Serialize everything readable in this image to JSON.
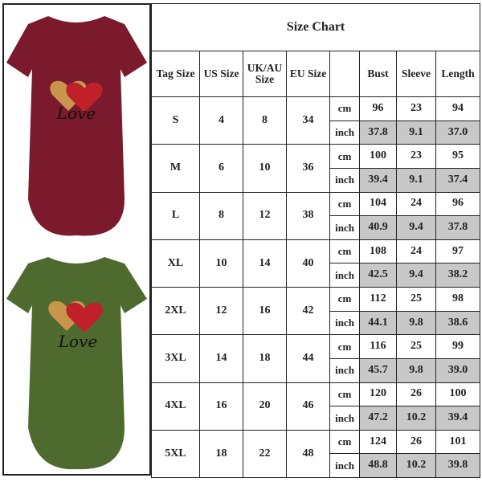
{
  "title": "Size Chart",
  "headers": [
    "Tag Size",
    "US Size",
    "UK/AU Size",
    "EU Size",
    "",
    "Bust",
    "Sleeve",
    "Length"
  ],
  "units": [
    "cm",
    "inch"
  ],
  "rows": [
    {
      "tag": "S",
      "us": "4",
      "uk": "8",
      "eu": "34",
      "cm": [
        "96",
        "23",
        "94"
      ],
      "inch": [
        "37.8",
        "9.1",
        "37.0"
      ]
    },
    {
      "tag": "M",
      "us": "6",
      "uk": "10",
      "eu": "36",
      "cm": [
        "100",
        "23",
        "95"
      ],
      "inch": [
        "39.4",
        "9.1",
        "37.4"
      ]
    },
    {
      "tag": "L",
      "us": "8",
      "uk": "12",
      "eu": "38",
      "cm": [
        "104",
        "24",
        "96"
      ],
      "inch": [
        "40.9",
        "9.4",
        "37.8"
      ]
    },
    {
      "tag": "XL",
      "us": "10",
      "uk": "14",
      "eu": "40",
      "cm": [
        "108",
        "24",
        "97"
      ],
      "inch": [
        "42.5",
        "9.4",
        "38.2"
      ]
    },
    {
      "tag": "2XL",
      "us": "12",
      "uk": "16",
      "eu": "42",
      "cm": [
        "112",
        "25",
        "98"
      ],
      "inch": [
        "44.1",
        "9.8",
        "38.6"
      ]
    },
    {
      "tag": "3XL",
      "us": "14",
      "uk": "18",
      "eu": "44",
      "cm": [
        "116",
        "25",
        "99"
      ],
      "inch": [
        "45.7",
        "9.8",
        "39.0"
      ]
    },
    {
      "tag": "4XL",
      "us": "16",
      "uk": "20",
      "eu": "46",
      "cm": [
        "120",
        "26",
        "100"
      ],
      "inch": [
        "47.2",
        "10.2",
        "39.4"
      ]
    },
    {
      "tag": "5XL",
      "us": "18",
      "uk": "22",
      "eu": "48",
      "cm": [
        "124",
        "26",
        "101"
      ],
      "inch": [
        "48.8",
        "10.2",
        "39.8"
      ]
    }
  ],
  "products": [
    {
      "color": "#7b1a2c",
      "print_text": "Love"
    },
    {
      "color": "#4e6a2f",
      "print_text": "Love"
    }
  ],
  "colors": {
    "inch_cell_bg": "#c8c8c8",
    "border": "#222222"
  }
}
